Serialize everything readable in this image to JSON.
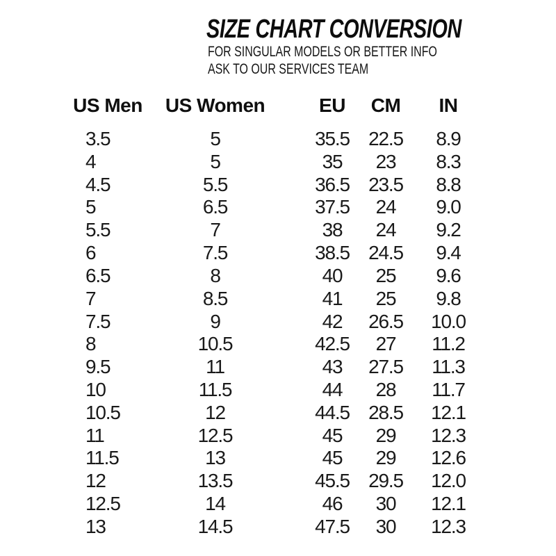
{
  "page": {
    "background": "#FFFFFF",
    "text_color": "#141414"
  },
  "header": {
    "title": "SIZE CHART CONVERSION",
    "subtitle_line1": "FOR SINGULAR MODELS OR BETTER INFO",
    "subtitle_line2": "ASK TO OUR SERVICES TEAM"
  },
  "chart_data": {
    "type": "table",
    "title": "SIZE CHART CONVERSION",
    "subtitle": "FOR SINGULAR MODELS OR BETTER INFO ASK TO OUR SERVICES TEAM",
    "columns": [
      "US Men",
      "US Women",
      "EU",
      "CM",
      "IN"
    ],
    "column_keys": [
      "us-men",
      "us-women",
      "eu",
      "cm",
      "in"
    ],
    "column_alignment": [
      "left",
      "center",
      "center",
      "center",
      "center"
    ],
    "rows": [
      [
        "3.5",
        "5",
        "35.5",
        "22.5",
        "8.9"
      ],
      [
        "4",
        "5",
        "35",
        "23",
        "8.3"
      ],
      [
        "4.5",
        "5.5",
        "36.5",
        "23.5",
        "8.8"
      ],
      [
        "5",
        "6.5",
        "37.5",
        "24",
        "9.0"
      ],
      [
        "5.5",
        "7",
        "38",
        "24",
        "9.2"
      ],
      [
        "6",
        "7.5",
        "38.5",
        "24.5",
        "9.4"
      ],
      [
        "6.5",
        "8",
        "40",
        "25",
        "9.6"
      ],
      [
        "7",
        "8.5",
        "41",
        "25",
        "9.8"
      ],
      [
        "7.5",
        "9",
        "42",
        "26.5",
        "10.0"
      ],
      [
        "8",
        "10.5",
        "42.5",
        "27",
        "11.2"
      ],
      [
        "9.5",
        "11",
        "43",
        "27.5",
        "11.3"
      ],
      [
        "10",
        "11.5",
        "44",
        "28",
        "11.7"
      ],
      [
        "10.5",
        "12",
        "44.5",
        "28.5",
        "12.1"
      ],
      [
        "11",
        "12.5",
        "45",
        "29",
        "12.3"
      ],
      [
        "11.5",
        "13",
        "45",
        "29",
        "12.6"
      ],
      [
        "12",
        "13.5",
        "45.5",
        "29.5",
        "12.0"
      ],
      [
        "12.5",
        "14",
        "46",
        "30",
        "12.1"
      ],
      [
        "13",
        "14.5",
        "47.5",
        "30",
        "12.3"
      ]
    ]
  }
}
